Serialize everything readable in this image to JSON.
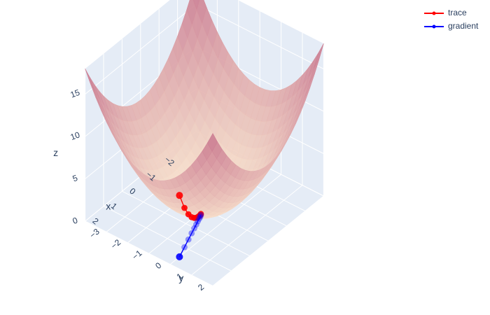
{
  "chart_data": {
    "type": "surface3d",
    "function": "z = x^2 + y^2",
    "surface_colors": {
      "low": "#fbe8d0",
      "high": "#c9788f"
    },
    "axes": {
      "x": {
        "title": "x",
        "ticks": [
          "2",
          "1",
          "0",
          "−1",
          "−2"
        ],
        "tick_values": [
          2,
          1,
          0,
          -1,
          -2
        ],
        "range": [
          -3,
          3
        ]
      },
      "y": {
        "title": "y",
        "ticks": [
          "−3",
          "−2",
          "−1",
          "0",
          "1",
          "2"
        ],
        "tick_values": [
          -3,
          -2,
          -1,
          0,
          1,
          2
        ],
        "range": [
          -3,
          3
        ]
      },
      "z": {
        "title": "z",
        "ticks": [
          "0",
          "5",
          "10",
          "15"
        ],
        "tick_values": [
          0,
          5,
          10,
          15
        ],
        "range": [
          0,
          18
        ]
      }
    },
    "series": [
      {
        "name": "trace",
        "color": "#ff0000",
        "points": [
          {
            "x": 2.5,
            "y": 1.0,
            "z": 7.25
          },
          {
            "x": 2.0,
            "y": 0.8,
            "z": 4.64
          },
          {
            "x": 1.6,
            "y": 0.64,
            "z": 2.97
          },
          {
            "x": 1.28,
            "y": 0.512,
            "z": 1.9
          },
          {
            "x": 1.02,
            "y": 0.41,
            "z": 1.22
          },
          {
            "x": 0.82,
            "y": 0.33,
            "z": 0.78
          },
          {
            "x": 0.66,
            "y": 0.26,
            "z": 0.5
          },
          {
            "x": 0.52,
            "y": 0.21,
            "z": 0.32
          },
          {
            "x": 0.42,
            "y": 0.17,
            "z": 0.2
          },
          {
            "x": 0.34,
            "y": 0.13,
            "z": 0.13
          }
        ]
      },
      {
        "name": "gradient",
        "color": "#0000ff",
        "points": [
          {
            "x": 2.5,
            "y": 1.0,
            "z": 0
          },
          {
            "x": 2.0,
            "y": 0.8,
            "z": 0
          },
          {
            "x": 1.6,
            "y": 0.64,
            "z": 0
          },
          {
            "x": 1.28,
            "y": 0.512,
            "z": 0
          },
          {
            "x": 1.02,
            "y": 0.41,
            "z": 0
          },
          {
            "x": 0.82,
            "y": 0.33,
            "z": 0
          },
          {
            "x": 0.66,
            "y": 0.26,
            "z": 0
          },
          {
            "x": 0.52,
            "y": 0.21,
            "z": 0
          },
          {
            "x": 0.42,
            "y": 0.17,
            "z": 0
          },
          {
            "x": 0.34,
            "y": 0.13,
            "z": 0
          }
        ]
      }
    ],
    "legend": {
      "position": "top-right",
      "entries": [
        "trace",
        "gradient"
      ]
    },
    "grid": true,
    "background": "#e5ecf6"
  }
}
